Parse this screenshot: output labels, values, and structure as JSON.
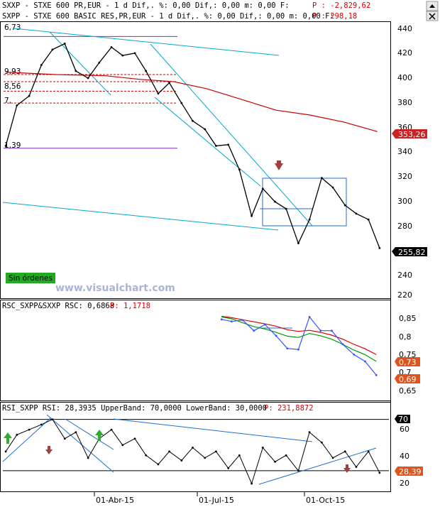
{
  "header": {
    "line1_left": "SXXP - STXE 600 PR,EUR - 1 d Dif,. %: 0,00 Dif,: 0,00 m: 0,00 F:",
    "line1_right": "P : -2,829,62",
    "line2_left": "SXPP - STXE 600 BASIC RES,PR,EUR - 1 d Dif,. %: 0,00 Dif,: 0,00 m: 0,00 F:",
    "line2_right": "P : 298,18"
  },
  "window_buttons": {
    "collapse_icon": "up-arrow-icon",
    "close_icon": "close-icon"
  },
  "panels": {
    "price": {
      "yticks": [
        "440",
        "420",
        "400",
        "380",
        "360",
        "340",
        "320",
        "300",
        "280",
        "260",
        "240",
        "220"
      ],
      "levels": [
        "6,73",
        "9,93",
        "8,56",
        "7,",
        "1,39"
      ],
      "last_price": "255,82",
      "ma_value": "353,26",
      "orders_button": "Sin órdenes",
      "watermark": "www.visualchart.com"
    },
    "rsc": {
      "header_label": "RSC_SXPP&SXXP RSC: 0,6868",
      "header_value": "P: 1,1718",
      "yticks": [
        "0,85",
        "0,8",
        "0,75",
        "0,7",
        "0,65"
      ],
      "tags": [
        "0,73",
        "0,69"
      ]
    },
    "rsi": {
      "header_label": "RSI_SXPP RSI: 28,3935 UpperBand: 70,0000 LowerBand: 30,0000",
      "header_value": "P: 231,8872",
      "yticks": [
        "60",
        "40",
        "20"
      ],
      "upper_band_tag": "70",
      "current_tag": "28,39"
    }
  },
  "x_axis": {
    "labels": [
      "01-Abr-15",
      "01-Jul-15",
      "01-Oct-15"
    ]
  },
  "colors": {
    "price_series": "#000000",
    "moving_average": "#cc0000",
    "trendline": "#00aacc",
    "support_line": "#7b2fbf",
    "rsc_series": "#3355ff",
    "rsc_green": "#009900",
    "rsc_red": "#dd0000",
    "rsi_line": "#000000",
    "rsi_oversold": "#dd0000",
    "rsi_trendline": "#1e6fd0",
    "header_value": "#dd0000",
    "tag_red": "#cc2222",
    "tag_black": "#000000",
    "tag_orange": "#e0531a",
    "arrow_down": "#a04040",
    "arrow_up": "#33aa33",
    "orders_button_bg": "#22aa22"
  },
  "chart_data": [
    {
      "type": "line",
      "name": "price",
      "yrange": [
        215,
        445
      ],
      "x": [
        "2015-01-15",
        "2015-01-25",
        "2015-02-05",
        "2015-02-16",
        "2015-02-26",
        "2015-03-09",
        "2015-03-19",
        "2015-03-30",
        "2015-04-09",
        "2015-04-20",
        "2015-04-30",
        "2015-05-11",
        "2015-05-21",
        "2015-06-01",
        "2015-06-11",
        "2015-06-22",
        "2015-07-02",
        "2015-07-13",
        "2015-07-23",
        "2015-08-03",
        "2015-08-13",
        "2015-08-24",
        "2015-09-03",
        "2015-09-14",
        "2015-09-24",
        "2015-10-05",
        "2015-10-15",
        "2015-10-26",
        "2015-11-05",
        "2015-11-16",
        "2015-11-26",
        "2015-12-07",
        "2015-12-17"
      ],
      "values": [
        342,
        376,
        384,
        410,
        423,
        428,
        405,
        399,
        412,
        425,
        418,
        420,
        405,
        386,
        395,
        378,
        363,
        356,
        342,
        343,
        322,
        283,
        306,
        295,
        289,
        260,
        280,
        315,
        307,
        292,
        285,
        280,
        256
      ],
      "moving_average": {
        "x": [
          "2015-01-15",
          "2015-03-01",
          "2015-04-15",
          "2015-05-15",
          "2015-06-15",
          "2015-07-15",
          "2015-08-15",
          "2015-09-15",
          "2015-10-15",
          "2015-11-15",
          "2015-12-15"
        ],
        "values": [
          404,
          402,
          401,
          398,
          396,
          390,
          381,
          372,
          368,
          362,
          354
        ]
      },
      "levels": [
        434,
        402,
        396,
        388,
        378,
        340
      ],
      "last_price": 255.82,
      "ma_last": 353.26
    },
    {
      "type": "line",
      "name": "RSC",
      "yrange": [
        0.62,
        0.89
      ],
      "x": [
        "2015-07-28",
        "2015-08-06",
        "2015-08-16",
        "2015-08-26",
        "2015-09-05",
        "2015-09-15",
        "2015-09-25",
        "2015-10-05",
        "2015-10-15",
        "2015-10-25",
        "2015-11-04",
        "2015-11-14",
        "2015-11-24",
        "2015-12-04",
        "2015-12-14"
      ],
      "values": [
        0.853,
        0.847,
        0.851,
        0.82,
        0.838,
        0.805,
        0.768,
        0.765,
        0.86,
        0.82,
        0.82,
        0.78,
        0.75,
        0.73,
        0.69
      ],
      "green_line": [
        0.86,
        0.855,
        0.843,
        0.832,
        0.825,
        0.815,
        0.804,
        0.8,
        0.812,
        0.805,
        0.795,
        0.78,
        0.763,
        0.75,
        0.73
      ],
      "red_line": [
        0.862,
        0.858,
        0.852,
        0.846,
        0.84,
        0.833,
        0.823,
        0.818,
        0.821,
        0.815,
        0.807,
        0.795,
        0.78,
        0.767,
        0.75
      ],
      "last": 0.6868
    },
    {
      "type": "line",
      "name": "RSI",
      "yrange": [
        15,
        77
      ],
      "bands": [
        70,
        30
      ],
      "x": [
        "2015-01-15",
        "2015-01-25",
        "2015-02-05",
        "2015-02-16",
        "2015-02-26",
        "2015-03-09",
        "2015-03-19",
        "2015-03-30",
        "2015-04-09",
        "2015-04-20",
        "2015-04-30",
        "2015-05-11",
        "2015-05-21",
        "2015-06-01",
        "2015-06-11",
        "2015-06-22",
        "2015-07-02",
        "2015-07-13",
        "2015-07-23",
        "2015-08-03",
        "2015-08-13",
        "2015-08-24",
        "2015-09-03",
        "2015-09-14",
        "2015-09-24",
        "2015-10-05",
        "2015-10-15",
        "2015-10-26",
        "2015-11-05",
        "2015-11-16",
        "2015-11-26",
        "2015-12-07",
        "2015-12-17"
      ],
      "values": [
        45,
        58,
        62,
        66,
        70,
        55,
        60,
        40,
        55,
        62,
        50,
        55,
        42,
        35,
        45,
        38,
        48,
        40,
        45,
        32,
        42,
        20,
        48,
        37,
        42,
        30,
        60,
        52,
        40,
        45,
        33,
        45,
        28.39
      ],
      "last": 28.39
    }
  ]
}
